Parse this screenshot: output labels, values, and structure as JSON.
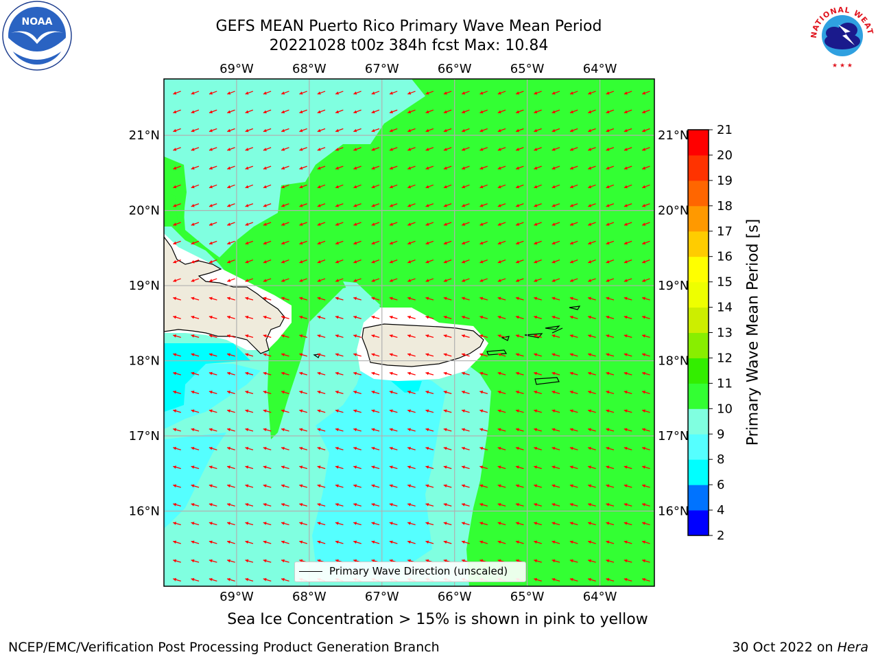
{
  "title": {
    "line1": "GEFS MEAN Puerto Rico Primary Wave Mean Period",
    "line2": "20221028 t00z 384h fcst   Max: 10.84"
  },
  "map": {
    "lon_ticks": [
      "69°W",
      "68°W",
      "67°W",
      "66°W",
      "65°W",
      "64°W"
    ],
    "lat_ticks": [
      "21°N",
      "20°N",
      "19°N",
      "18°N",
      "17°N",
      "16°N"
    ],
    "lon_range": [
      -70.0,
      -63.25
    ],
    "lat_range": [
      15.0,
      21.75
    ],
    "grid": true,
    "arrow_color": "#ff0000",
    "land_color": "#efebdc",
    "legend_text": "Primary Wave Direction (unscaled)"
  },
  "colorbar": {
    "label": "Primary Wave Mean Period [s]",
    "ticks": [
      "2",
      "4",
      "6",
      "8",
      "9",
      "10",
      "11",
      "12",
      "13",
      "14",
      "15",
      "16",
      "17",
      "18",
      "19",
      "20",
      "21"
    ],
    "colors": [
      "#0000ff",
      "#0073ff",
      "#00ffff",
      "#55ffff",
      "#80ffe0",
      "#33ff33",
      "#33ee00",
      "#88ee00",
      "#ccee00",
      "#eeff00",
      "#ffff00",
      "#ffcc00",
      "#ff9900",
      "#ff6600",
      "#ff3300",
      "#ff0000"
    ]
  },
  "ice_note": "Sea Ice Concentration > 15% is shown in pink to yellow",
  "footer": {
    "left": "NCEP/EMC/Verification Post Processing Product Generation Branch",
    "right_prefix": "30 Oct 2022 on ",
    "right_machine": "Hera"
  },
  "logos": {
    "noaa_text": "NOAA",
    "nws_text": "NATIONAL WEATHER SERVICE"
  }
}
